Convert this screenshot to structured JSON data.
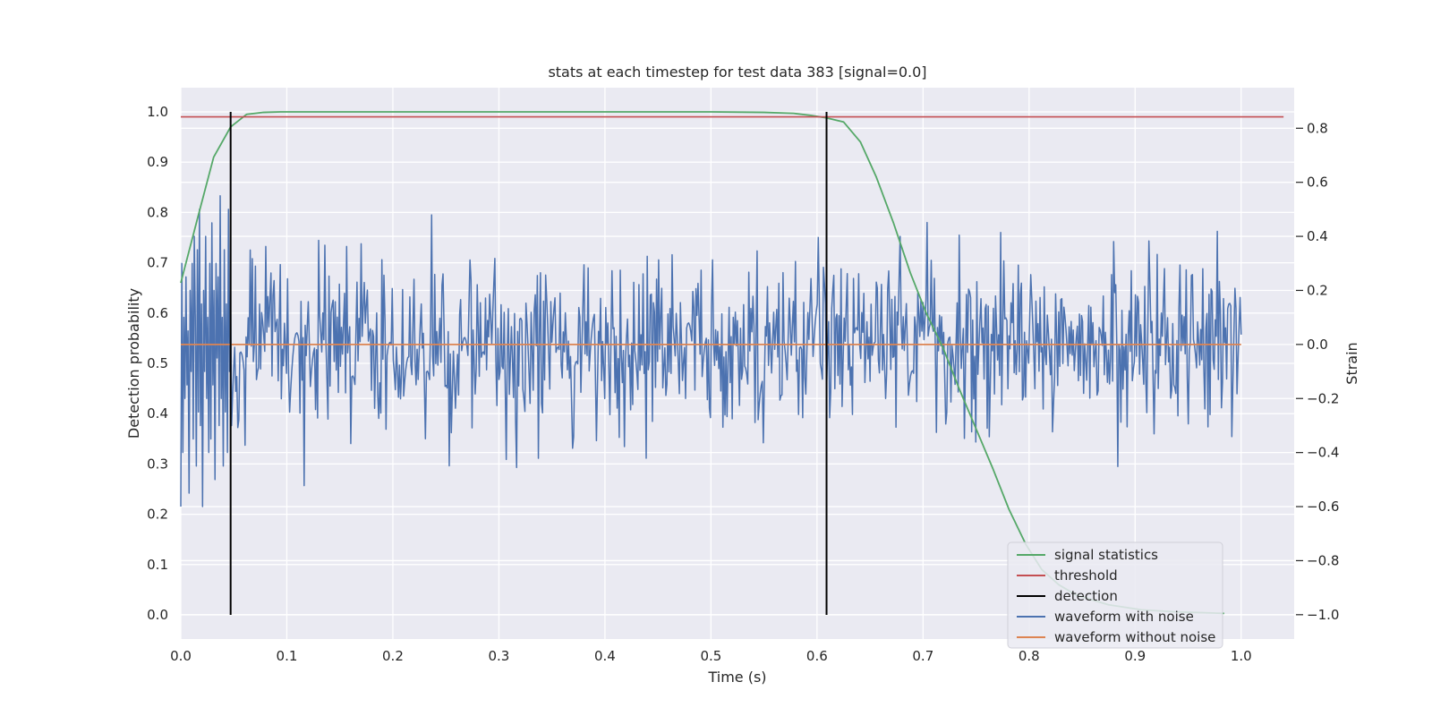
{
  "chart_data": {
    "type": "line",
    "title": "stats at each timestep for test data 383 [signal=0.0]",
    "xlabel": "Time (s)",
    "ylabel": "Detection probability",
    "y2label": "Strain",
    "xlim": [
      0.0,
      1.05
    ],
    "ylim": [
      -0.048,
      1.048
    ],
    "y2lim": [
      -1.09,
      0.95
    ],
    "xticks": [
      0.0,
      0.1,
      0.2,
      0.3,
      0.4,
      0.5,
      0.6,
      0.7,
      0.8,
      0.9,
      1.0
    ],
    "yticks": [
      0.0,
      0.1,
      0.2,
      0.3,
      0.4,
      0.5,
      0.6,
      0.7,
      0.8,
      0.9,
      1.0
    ],
    "y2ticks": [
      -1.0,
      -0.8,
      -0.6,
      -0.4,
      -0.2,
      0.0,
      0.2,
      0.4,
      0.6,
      0.8
    ],
    "grid": true,
    "legend_position": "lower-right",
    "legend": [
      "signal statistics",
      "threshold",
      "detection",
      "waveform with noise",
      "waveform without noise"
    ],
    "series": [
      {
        "name": "signal statistics",
        "axis": "left",
        "color": "#55a868",
        "x": [
          0.0,
          0.016,
          0.031,
          0.047,
          0.062,
          0.078,
          0.094,
          0.2,
          0.3,
          0.4,
          0.5,
          0.55,
          0.578,
          0.594,
          0.609,
          0.625,
          0.641,
          0.656,
          0.672,
          0.688,
          0.703,
          0.719,
          0.734,
          0.75,
          0.766,
          0.781,
          0.797,
          0.812,
          0.828,
          0.844,
          0.859,
          0.875,
          0.891,
          0.906,
          0.922,
          0.938,
          0.953,
          0.969,
          0.984
        ],
        "values": [
          0.66,
          0.79,
          0.91,
          0.97,
          0.995,
          0.999,
          1.0,
          1.0,
          1.0,
          1.0,
          1.0,
          0.999,
          0.997,
          0.993,
          0.988,
          0.98,
          0.94,
          0.87,
          0.78,
          0.68,
          0.6,
          0.53,
          0.45,
          0.37,
          0.29,
          0.21,
          0.14,
          0.09,
          0.06,
          0.04,
          0.03,
          0.02,
          0.015,
          0.01,
          0.008,
          0.006,
          0.005,
          0.004,
          0.003
        ]
      },
      {
        "name": "threshold",
        "axis": "left",
        "color": "#c44e52",
        "x": [
          0.0,
          1.04
        ],
        "values": [
          0.99,
          0.99
        ]
      },
      {
        "name": "waveform with noise",
        "axis": "right",
        "color": "#4c72b0",
        "x_range": [
          0.0,
          1.0
        ],
        "sample_count": 1024,
        "values": [
          -0.6,
          0.3,
          -0.4,
          0.1,
          -0.2,
          0.25,
          -0.15,
          0.05,
          -0.55,
          0.2,
          -0.1,
          0.3,
          -0.35,
          0.4,
          0.1,
          -0.45,
          0.35,
          -0.25,
          0.5,
          -0.3,
          0.15,
          -0.6,
          0.2,
          -0.1,
          0.4,
          -0.2,
          0.1,
          -0.4,
          0.3,
          -0.35,
          0.45,
          -0.15,
          0.2,
          -0.5,
          0.3,
          -0.05,
          0.25,
          -0.3,
          0.55,
          -0.2,
          0.1,
          -0.45,
          0.35,
          -0.25,
          0.15,
          -0.4,
          0.5,
          -0.1,
          0.2,
          -0.3
        ]
      },
      {
        "name": "waveform without noise",
        "axis": "right",
        "color": "#dd8452",
        "x": [
          0.0,
          1.0
        ],
        "values": [
          0.0,
          0.0
        ]
      }
    ],
    "detections": {
      "name": "detection",
      "color": "#000000",
      "x": [
        0.047,
        0.609
      ],
      "y_from": 0.0,
      "y_to": 1.0
    }
  }
}
